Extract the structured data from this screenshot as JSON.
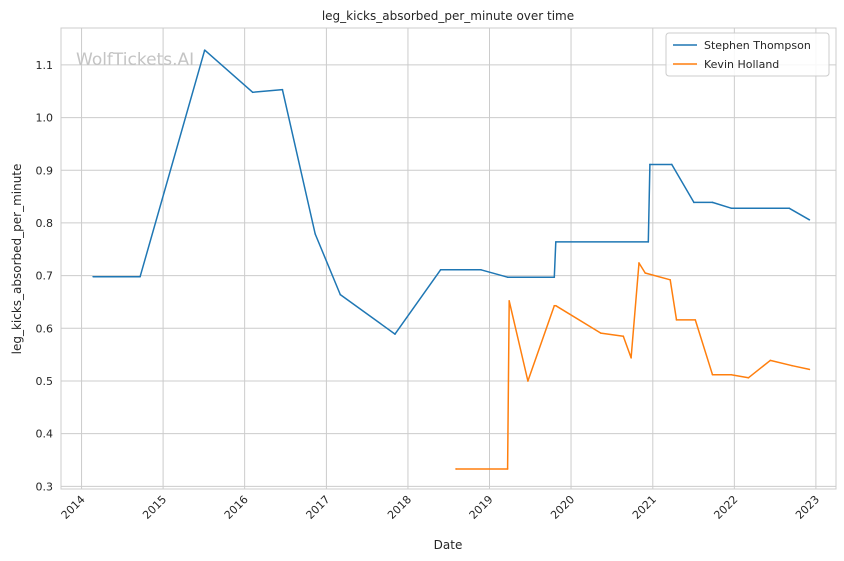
{
  "watermark": "WolfTickets.AI",
  "chart_data": {
    "type": "line",
    "title": "leg_kicks_absorbed_per_minute over time",
    "xlabel": "Date",
    "ylabel": "leg_kicks_absorbed_per_minute",
    "xlim": [
      "2013-10-01",
      "2023-04-01"
    ],
    "ylim": [
      0.295,
      1.17
    ],
    "x_ticks": [
      "2014",
      "2015",
      "2016",
      "2017",
      "2018",
      "2019",
      "2020",
      "2021",
      "2022",
      "2023"
    ],
    "y_ticks": [
      "0.3",
      "0.4",
      "0.5",
      "0.6",
      "0.7",
      "0.8",
      "0.9",
      "1.0",
      "1.1"
    ],
    "grid": true,
    "legend_position": "top-right",
    "series": [
      {
        "name": "Stephen Thompson",
        "color": "#1f77b4",
        "points": [
          [
            "2014-02-22",
            0.698
          ],
          [
            "2014-09-20",
            0.698
          ],
          [
            "2015-07-06",
            1.128
          ],
          [
            "2016-02-06",
            1.048
          ],
          [
            "2016-06-18",
            1.053
          ],
          [
            "2016-11-12",
            0.779
          ],
          [
            "2017-03-04",
            0.664
          ],
          [
            "2017-11-04",
            0.589
          ],
          [
            "2018-05-27",
            0.711
          ],
          [
            "2018-11-24",
            0.711
          ],
          [
            "2019-03-23",
            0.697
          ],
          [
            "2019-10-18",
            0.697
          ],
          [
            "2019-10-25",
            0.764
          ],
          [
            "2020-12-12",
            0.764
          ],
          [
            "2020-12-19",
            0.911
          ],
          [
            "2021-03-27",
            0.911
          ],
          [
            "2021-07-04",
            0.839
          ],
          [
            "2021-09-25",
            0.839
          ],
          [
            "2021-12-18",
            0.828
          ],
          [
            "2022-09-03",
            0.828
          ],
          [
            "2022-12-03",
            0.806
          ]
        ]
      },
      {
        "name": "Kevin Holland",
        "color": "#ff7f0e",
        "points": [
          [
            "2018-08-04",
            0.333
          ],
          [
            "2019-03-23",
            0.333
          ],
          [
            "2019-03-30",
            0.652
          ],
          [
            "2019-06-22",
            0.5
          ],
          [
            "2019-10-18",
            0.643
          ],
          [
            "2019-10-25",
            0.643
          ],
          [
            "2020-05-13",
            0.591
          ],
          [
            "2020-08-22",
            0.585
          ],
          [
            "2020-09-26",
            0.544
          ],
          [
            "2020-10-31",
            0.724
          ],
          [
            "2020-11-28",
            0.705
          ],
          [
            "2021-03-20",
            0.692
          ],
          [
            "2021-04-17",
            0.616
          ],
          [
            "2021-07-10",
            0.616
          ],
          [
            "2021-09-25",
            0.512
          ],
          [
            "2021-12-18",
            0.512
          ],
          [
            "2022-03-05",
            0.506
          ],
          [
            "2022-06-11",
            0.539
          ],
          [
            "2022-09-17",
            0.529
          ],
          [
            "2022-12-03",
            0.522
          ]
        ]
      }
    ]
  }
}
